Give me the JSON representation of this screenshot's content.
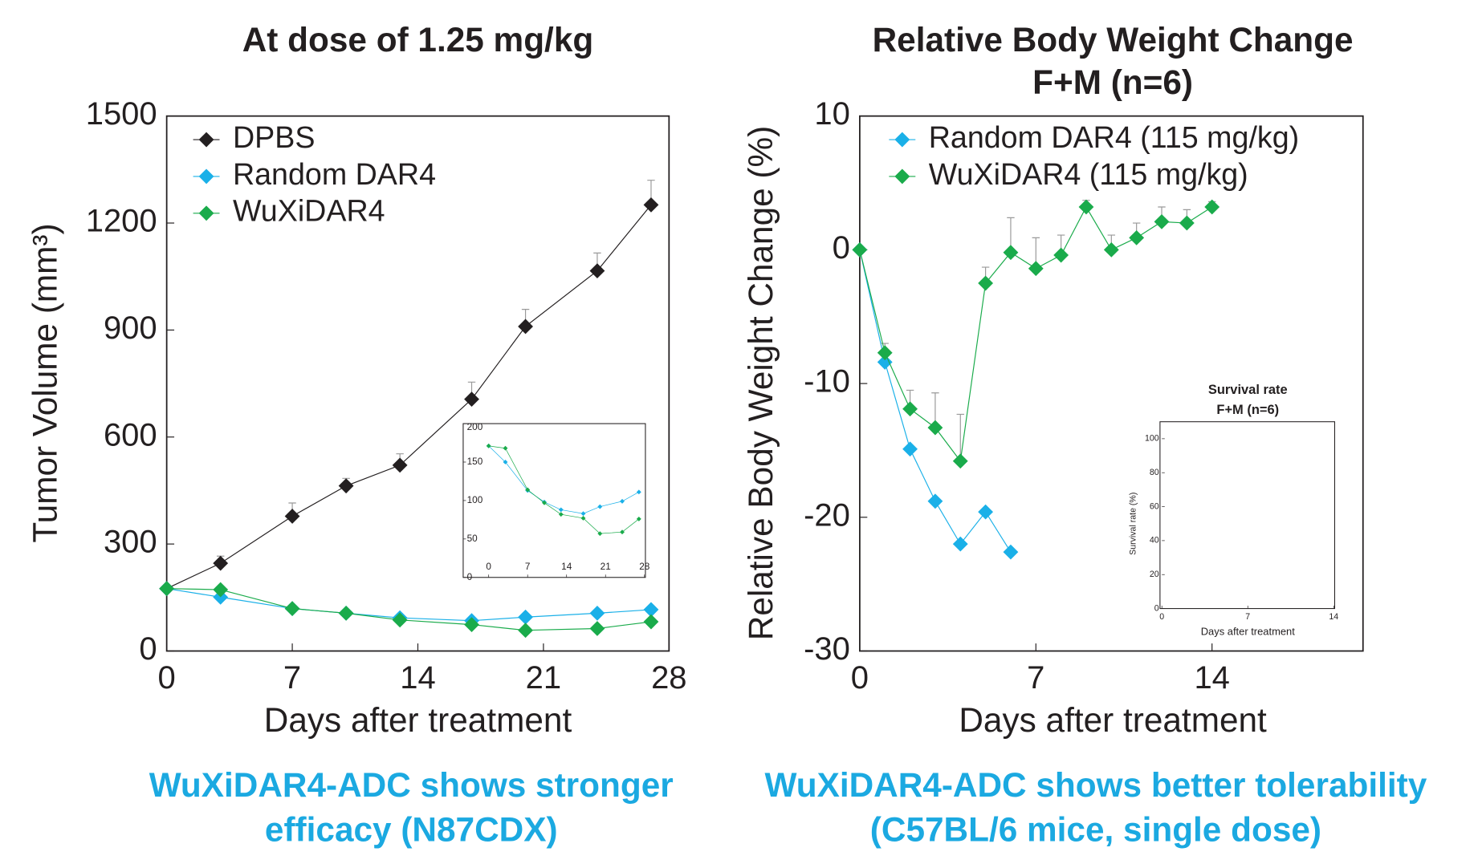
{
  "chart_data": [
    {
      "type": "line",
      "title": "At dose of 1.25 mg/kg",
      "xlabel": "Days after treatment",
      "ylabel": "Tumor Volume (mm³)",
      "x": [
        0,
        3,
        7,
        10,
        13,
        17,
        20,
        24,
        27
      ],
      "series": [
        {
          "name": "DPBS",
          "color": "#231f20",
          "values": [
            175,
            246,
            378,
            463,
            521,
            706,
            910,
            1066,
            1251
          ],
          "errors": [
            0,
            20,
            37,
            21,
            32,
            48,
            48,
            50,
            69
          ]
        },
        {
          "name": "Random DAR4",
          "color": "#1ab0e8",
          "values": [
            175,
            151,
            119,
            106,
            93,
            85,
            95,
            106,
            116
          ]
        },
        {
          "name": "WuXiDAR4",
          "color": "#1aab4b",
          "values": [
            175,
            172,
            119,
            106,
            87,
            74,
            58,
            63,
            82
          ]
        }
      ],
      "xlim": [
        0,
        28
      ],
      "xticks": [
        0,
        7,
        14,
        21,
        28
      ],
      "ylim": [
        0,
        1500
      ],
      "yticks": [
        0,
        300,
        600,
        900,
        1200,
        1500
      ],
      "legend": "upper left",
      "caption": [
        "WuXiDAR4-ADC shows stronger",
        "efficacy (N87CDX)"
      ]
    },
    {
      "type": "line",
      "x": [
        0,
        3,
        7,
        10,
        13,
        17,
        20,
        24,
        27
      ],
      "series": [
        {
          "color": "#1ab0e8",
          "values": [
            171,
            150,
            113,
            98,
            88,
            83,
            92,
            99,
            111
          ]
        },
        {
          "color": "#1aab4b",
          "values": [
            171,
            168,
            114,
            97,
            82,
            77,
            57,
            59,
            76
          ]
        }
      ],
      "xlim": [
        0,
        28
      ],
      "xticks": [
        0,
        7,
        14,
        21,
        28
      ],
      "ylim": [
        0,
        200
      ],
      "yticks": [
        0,
        50,
        100,
        150,
        200
      ]
    },
    {
      "type": "line",
      "title": "Relative Body Weight Change",
      "subtitle": "F+M (n=6)",
      "xlabel": "Days after treatment",
      "ylabel": "Relative Body Weight Change (%)",
      "x": [
        0,
        1,
        2,
        3,
        4,
        5,
        6,
        7,
        8,
        9,
        10,
        11,
        12,
        13,
        14
      ],
      "series": [
        {
          "name": "Random DAR4 (115 mg/kg)",
          "color": "#1ab0e8",
          "values": [
            0,
            -8.4,
            -14.9,
            -18.8,
            -22.0,
            -19.6,
            -22.6,
            null,
            null,
            null,
            null,
            null,
            null,
            null,
            null
          ]
        },
        {
          "name": "WuXiDAR4 (115 mg/kg)",
          "color": "#1aab4b",
          "values": [
            0,
            -7.7,
            -11.9,
            -13.3,
            -15.8,
            -2.5,
            -0.2,
            -1.4,
            -0.4,
            3.2,
            0.0,
            0.9,
            2.1,
            2.0,
            3.2
          ],
          "errors": [
            0,
            0.7,
            1.4,
            2.6,
            3.5,
            1.2,
            2.6,
            2.3,
            1.5,
            0.5,
            1.1,
            1.1,
            1.1,
            1.0,
            0.4
          ]
        }
      ],
      "xlim": [
        0,
        20
      ],
      "xticks": [
        0,
        7,
        14
      ],
      "ylim": [
        -30,
        10
      ],
      "yticks": [
        -30,
        -20,
        -10,
        0,
        10
      ],
      "legend": "upper left",
      "caption": [
        "WuXiDAR4-ADC shows better tolerability",
        "(C57BL/6 mice, single dose)"
      ]
    },
    {
      "type": "line",
      "title": "Survival rate",
      "subtitle": "F+M (n=6)",
      "xlabel": "Days after treatment",
      "ylabel": "Survival rate (%)",
      "series": [],
      "xlim": [
        0,
        14
      ],
      "xticks": [
        0,
        7,
        14
      ],
      "ylim": [
        0,
        100
      ],
      "yticks": [
        0,
        20,
        40,
        60,
        80,
        100
      ]
    }
  ]
}
